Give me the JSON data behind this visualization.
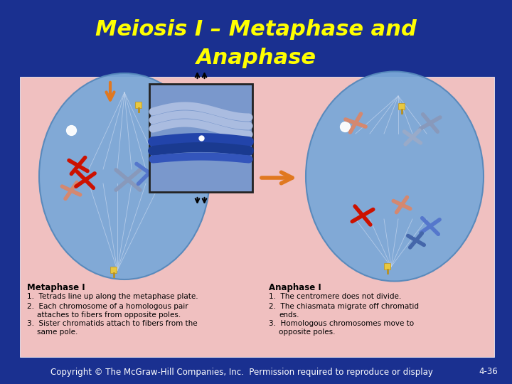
{
  "title_line1": "Meiosis I – Metaphase and",
  "title_line2": "Anaphase",
  "title_color": "#FFFF00",
  "title_fontsize": 22,
  "bg_dark": "#1a3090",
  "content_bg": "#f0c0c0",
  "footer_text": "Copyright © The McGraw-Hill Companies, Inc.  Permission required to reproduce or display",
  "footer_right": "4-36",
  "footer_color": "#ffffff",
  "footer_fontsize": 8.5,
  "metaphase_title": "Metaphase I",
  "metaphase_points": [
    "Tetrads line up along the metaphase plate.",
    "Each chromosome of a homologous pair\n   attaches to fibers from opposite poles.",
    "Sister chromatids attach to fibers from the\n   same pole."
  ],
  "anaphase_title": "Anaphase I",
  "anaphase_points": [
    "The centromere does not divide.",
    "The chiasmata migrate off chromatid\n   ends.",
    "Homologous chromosomes move to\n   opposite poles."
  ],
  "text_fontsize": 7.5,
  "label_fontsize": 8.5,
  "cell_color": "#7ba8d8",
  "cell_edge": "#5588bb",
  "fiber_color": "#c8d8f0",
  "pole_color": "#e8c840",
  "shine_color": "#ffffff",
  "red_chr": "#cc1100",
  "salmon_chr": "#d48870",
  "blue_chr": "#5577cc",
  "ltblue_chr": "#8899bb",
  "inset_bg": "#9ab0d8",
  "inset_dark_blue": "#1a3a8a",
  "orange_arrow": "#e07820"
}
